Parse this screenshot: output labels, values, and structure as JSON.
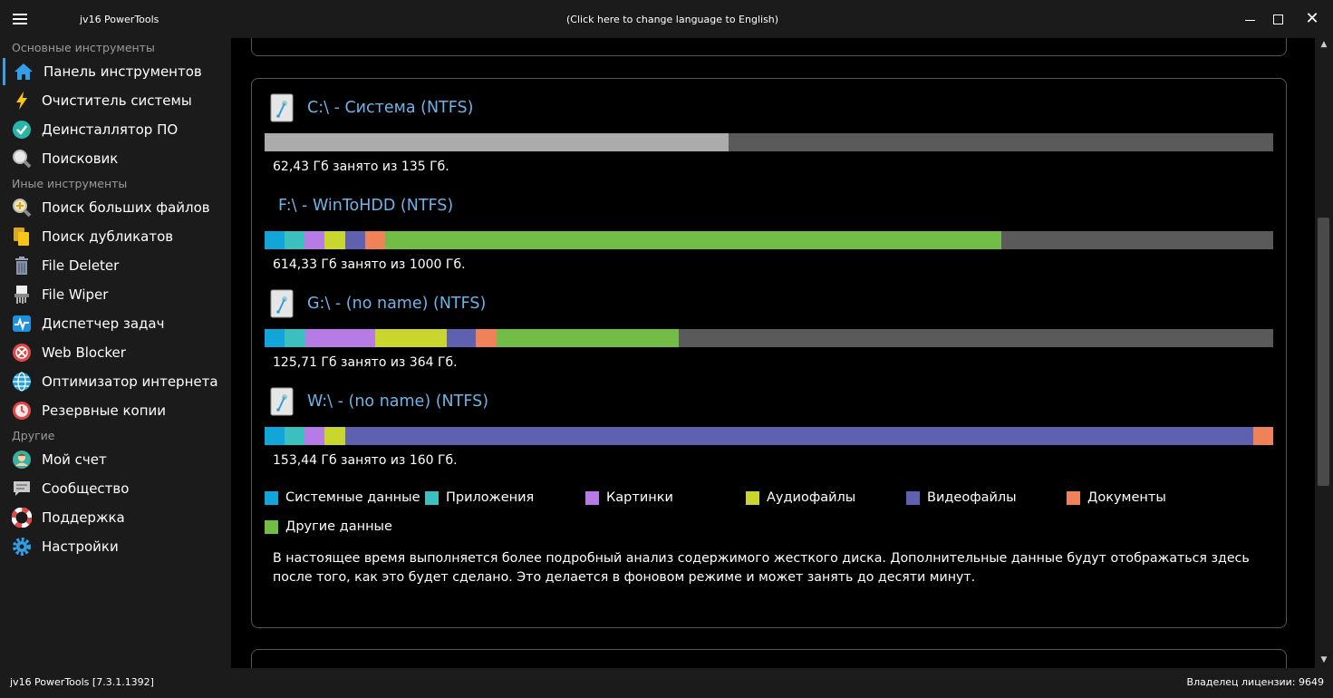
{
  "window": {
    "title": "jv16 PowerTools",
    "language_link": "(Click here to change language to English)"
  },
  "sidebar": {
    "sections": [
      {
        "label": "Основные инструменты"
      },
      {
        "label": "Иные инструменты"
      },
      {
        "label": "Другие"
      }
    ],
    "items": [
      {
        "label": "Панель инструментов",
        "icon": "home-icon"
      },
      {
        "label": "Очиститель системы",
        "icon": "lightning-icon"
      },
      {
        "label": "Деинсталлятор ПО",
        "icon": "check-circle-icon"
      },
      {
        "label": "Поисковик",
        "icon": "magnifier-icon"
      },
      {
        "label": "Поиск больших файлов",
        "icon": "big-file-search-icon"
      },
      {
        "label": "Поиск дубликатов",
        "icon": "duplicate-files-icon"
      },
      {
        "label": "File Deleter",
        "icon": "trash-icon"
      },
      {
        "label": "File Wiper",
        "icon": "shredder-icon"
      },
      {
        "label": "Диспетчер задач",
        "icon": "activity-icon"
      },
      {
        "label": "Web Blocker",
        "icon": "block-icon"
      },
      {
        "label": "Оптимизатор интернета",
        "icon": "globe-icon"
      },
      {
        "label": "Резервные копии",
        "icon": "backup-clock-icon"
      },
      {
        "label": "Мой счет",
        "icon": "user-avatar-icon"
      },
      {
        "label": "Сообщество",
        "icon": "chat-icon"
      },
      {
        "label": "Поддержка",
        "icon": "lifebuoy-icon"
      },
      {
        "label": "Настройки",
        "icon": "gear-icon"
      }
    ]
  },
  "colors": {
    "system": "#12a5d9",
    "apps": "#3bbfbf",
    "pictures": "#b77be6",
    "audio": "#c8d62e",
    "video": "#6060b0",
    "documents": "#f0825a",
    "other": "#72bd45",
    "free": "#5a5a5a",
    "used_generic": "#ababab",
    "title": "#6fb3e6"
  },
  "drives": [
    {
      "title": "C:\\ - Система (NTFS)",
      "usage": "62,43 Гб занято из 135 Гб.",
      "segments": [
        {
          "category": "used_generic",
          "fraction": 0.4599
        }
      ]
    },
    {
      "title": "F:\\ - WinToHDD (NTFS)",
      "usage": "614,33 Гб занято из 1000 Гб.",
      "segments": [
        {
          "category": "system",
          "fraction": 0.0198
        },
        {
          "category": "apps",
          "fraction": 0.0198
        },
        {
          "category": "pictures",
          "fraction": 0.0198
        },
        {
          "category": "audio",
          "fraction": 0.0207
        },
        {
          "category": "video",
          "fraction": 0.0198
        },
        {
          "category": "documents",
          "fraction": 0.0198
        },
        {
          "category": "other",
          "fraction": 0.611
        }
      ]
    },
    {
      "title": "G:\\ - (no name) (NTFS)",
      "usage": "125,71 Гб занято из 364 Гб.",
      "segments": [
        {
          "category": "system",
          "fraction": 0.0198
        },
        {
          "category": "apps",
          "fraction": 0.0207
        },
        {
          "category": "pictures",
          "fraction": 0.0692
        },
        {
          "category": "audio",
          "fraction": 0.071
        },
        {
          "category": "video",
          "fraction": 0.0288
        },
        {
          "category": "documents",
          "fraction": 0.0207
        },
        {
          "category": "other",
          "fraction": 0.1806
        }
      ]
    },
    {
      "title": "W:\\ - (no name) (NTFS)",
      "usage": "153,44 Гб занято из 160 Гб.",
      "segments": [
        {
          "category": "system",
          "fraction": 0.0198
        },
        {
          "category": "apps",
          "fraction": 0.0198
        },
        {
          "category": "pictures",
          "fraction": 0.0198
        },
        {
          "category": "audio",
          "fraction": 0.0207
        },
        {
          "category": "video",
          "fraction": 0.9004
        },
        {
          "category": "documents",
          "fraction": 0.0198
        }
      ]
    }
  ],
  "legend": [
    {
      "label": "Системные данные",
      "category": "system"
    },
    {
      "label": "Приложения",
      "category": "apps"
    },
    {
      "label": "Картинки",
      "category": "pictures"
    },
    {
      "label": "Аудиофайлы",
      "category": "audio"
    },
    {
      "label": "Видеофайлы",
      "category": "video"
    },
    {
      "label": "Документы",
      "category": "documents"
    },
    {
      "label": "Другие данные",
      "category": "other"
    }
  ],
  "info_text": "В настоящее время выполняется более подробный анализ содержимого жесткого диска. Дополнительные данные будут отображаться здесь после того, как это будет сделано. Это делается в фоновом режиме и может занять до десяти минут.",
  "status": {
    "version": "jv16 PowerTools [7.3.1.1392]",
    "license": "Владелец лицензии: 9649"
  }
}
